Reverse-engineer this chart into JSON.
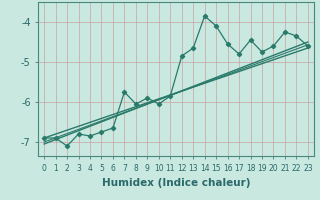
{
  "xlabel": "Humidex (Indice chaleur)",
  "ylabel": "",
  "bg_color": "#c8e8e0",
  "grid_color": "#b0c8c4",
  "line_color": "#2a7a6a",
  "xlim": [
    -0.5,
    23.5
  ],
  "ylim": [
    -7.35,
    -3.5
  ],
  "x_data": [
    0,
    1,
    2,
    3,
    4,
    5,
    6,
    7,
    8,
    9,
    10,
    11,
    12,
    13,
    14,
    15,
    16,
    17,
    18,
    19,
    20,
    21,
    22,
    23
  ],
  "y_data": [
    -6.9,
    -6.9,
    -7.1,
    -6.8,
    -6.85,
    -6.75,
    -6.65,
    -5.75,
    -6.05,
    -5.9,
    -6.05,
    -5.85,
    -4.85,
    -4.65,
    -3.85,
    -4.1,
    -4.55,
    -4.8,
    -4.45,
    -4.75,
    -4.6,
    -4.25,
    -4.35,
    -4.6
  ],
  "trend1_x": [
    0,
    23
  ],
  "trend1_y": [
    -7.05,
    -4.5
  ],
  "trend2_x": [
    0,
    23
  ],
  "trend2_y": [
    -6.9,
    -4.65
  ],
  "trend3_x": [
    0,
    23
  ],
  "trend3_y": [
    -7.0,
    -4.57
  ],
  "yticks": [
    -7,
    -6,
    -5,
    -4
  ],
  "xticks": [
    0,
    1,
    2,
    3,
    4,
    5,
    6,
    7,
    8,
    9,
    10,
    11,
    12,
    13,
    14,
    15,
    16,
    17,
    18,
    19,
    20,
    21,
    22,
    23
  ],
  "tick_color": "#2a6a6a",
  "spine_color": "#4a8a7a",
  "xlabel_fontsize": 7.5,
  "ytick_fontsize": 7,
  "xtick_fontsize": 5.5
}
